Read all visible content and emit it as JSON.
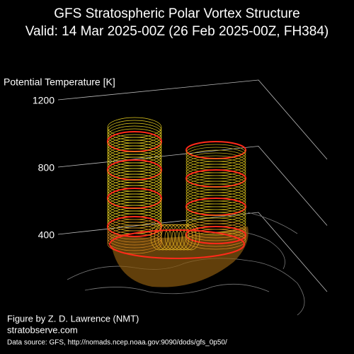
{
  "chart_data": {
    "type": "surface3d",
    "title": "GFS Stratospheric Polar Vortex Structure",
    "subtitle": "Valid: 14 Mar 2025-00Z  (26 Feb 2025-00Z, FH384)",
    "zlabel": "Potential Temperature [K]",
    "zlim": [
      400,
      1200
    ],
    "zticks": [
      400,
      800,
      1200
    ],
    "annotations": [
      "Figure by Z. D. Lawrence (NMT)",
      "stratobserve.com",
      "Data source: GFS, http://nomads.ncep.noaa.gov:9090/dods/gfs_0p50/"
    ]
  }
}
